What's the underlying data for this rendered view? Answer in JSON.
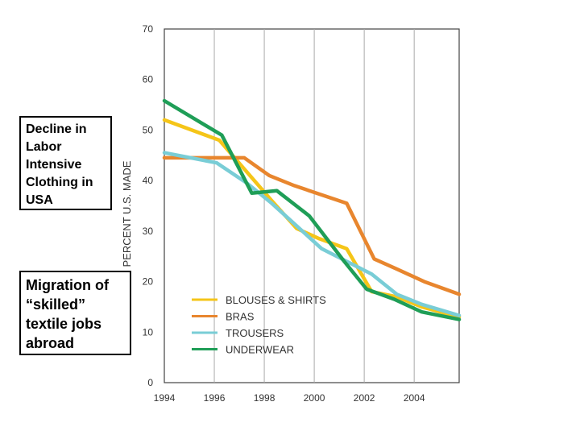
{
  "callouts": [
    {
      "lines": [
        "Decline in",
        "Labor",
        "Intensive",
        "Clothing in",
        "USA"
      ]
    },
    {
      "lines": [
        "Migration of",
        "“skilled”",
        "textile jobs",
        "abroad"
      ]
    }
  ],
  "chart_data": {
    "type": "line",
    "title": "",
    "xlabel": "",
    "ylabel": "PERCENT U.S. MADE",
    "xlim": [
      1994,
      2005.8
    ],
    "ylim": [
      0,
      70
    ],
    "x_ticks": [
      1994,
      1996,
      1998,
      2000,
      2002,
      2004
    ],
    "y_ticks": [
      0,
      10,
      20,
      30,
      40,
      50,
      60,
      70
    ],
    "grid": "vertical",
    "legend_position": "bottom-left",
    "series": [
      {
        "name": "BLOUSES & SHIRTS",
        "color": "#f5c518",
        "points": [
          [
            1994,
            52
          ],
          [
            1996.2,
            48
          ],
          [
            1998.3,
            36
          ],
          [
            1999.3,
            30.5
          ],
          [
            2000.2,
            28.5
          ],
          [
            2001.3,
            26.5
          ],
          [
            2002.3,
            18
          ],
          [
            2003.3,
            17
          ],
          [
            2004.3,
            15
          ],
          [
            2005.8,
            13
          ]
        ]
      },
      {
        "name": "BRAS",
        "color": "#e8862e",
        "points": [
          [
            1994,
            44.5
          ],
          [
            1997.2,
            44.5
          ],
          [
            1998.2,
            41
          ],
          [
            1999.2,
            39
          ],
          [
            2001.3,
            35.5
          ],
          [
            2002.4,
            24.5
          ],
          [
            2003.3,
            22.5
          ],
          [
            2004.4,
            20
          ],
          [
            2005.8,
            17.5
          ]
        ]
      },
      {
        "name": "TROUSERS",
        "color": "#79cdd6",
        "points": [
          [
            1994,
            45.5
          ],
          [
            1996.1,
            43.5
          ],
          [
            1997.3,
            39.5
          ],
          [
            1998.3,
            35.5
          ],
          [
            1999.3,
            31
          ],
          [
            2000.3,
            26.5
          ],
          [
            2001.3,
            24
          ],
          [
            2002.3,
            21.5
          ],
          [
            2003.3,
            17.5
          ],
          [
            2004.3,
            15.5
          ],
          [
            2005.8,
            13.3
          ]
        ]
      },
      {
        "name": "UNDERWEAR",
        "color": "#1f9e57",
        "points": [
          [
            1994,
            55.8
          ],
          [
            1996.3,
            49
          ],
          [
            1997.5,
            37.5
          ],
          [
            1998.5,
            38
          ],
          [
            1999.8,
            33
          ],
          [
            2001.2,
            24
          ],
          [
            2002.1,
            18.5
          ],
          [
            2003.2,
            16.5
          ],
          [
            2004.3,
            14
          ],
          [
            2005.8,
            12.5
          ]
        ]
      }
    ]
  }
}
